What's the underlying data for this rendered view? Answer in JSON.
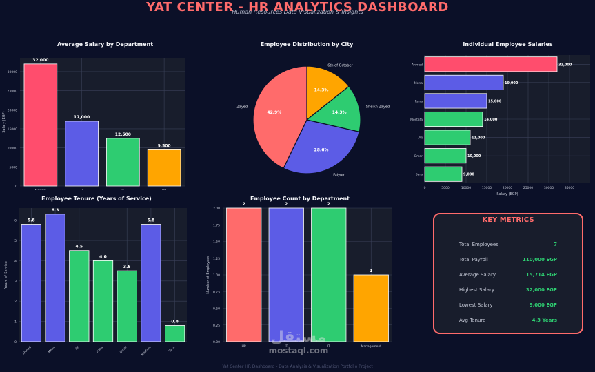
{
  "header": {
    "title": "YAT CENTER - HR ANALYTICS DASHBOARD",
    "subtitle": "Human Resources Data Visualization & Insights"
  },
  "chart_data": [
    {
      "id": "avg_salary",
      "type": "bar",
      "title": "Average Salary by Department",
      "ylabel": "Salary (EGP)",
      "categories": [
        "Manag.",
        "IT",
        "IT",
        "HR"
      ],
      "values": [
        32000,
        17000,
        12500,
        9500
      ],
      "value_labels": [
        "32,000",
        "17,000",
        "12,500",
        "9,500"
      ],
      "colors": [
        "#ff4d6d",
        "#5c5ce6",
        "#2ecc71",
        "#ffa500"
      ],
      "ylim": [
        0,
        33600
      ],
      "yticks": [
        0,
        5000,
        10000,
        15000,
        20000,
        25000,
        30000
      ],
      "grid": true
    },
    {
      "id": "city_dist",
      "type": "pie",
      "title": "Employee Distribution by City",
      "labels": [
        "6th of October",
        "Sheikh Zayed",
        "Faiyum",
        "Zayed"
      ],
      "values": [
        14.3,
        14.3,
        28.6,
        42.9
      ],
      "pct_labels": [
        "14.3%",
        "14.3%",
        "28.6%",
        "42.9%"
      ],
      "colors": [
        "#ffa500",
        "#2ecc71",
        "#5c5ce6",
        "#ff6b6b"
      ]
    },
    {
      "id": "ind_salary",
      "type": "bar",
      "orientation": "horizontal",
      "title": "Individual Employee Salaries",
      "xlabel": "Salary (EGP)",
      "categories": [
        "Ahmed",
        "Mona",
        "Rana",
        "Mostafa",
        "Ali",
        "Omar",
        "Sara"
      ],
      "values": [
        32000,
        19000,
        15000,
        14000,
        11000,
        10000,
        9000
      ],
      "value_labels": [
        "32,000",
        "19,000",
        "15,000",
        "14,000",
        "11,000",
        "10,000",
        "9,000"
      ],
      "colors": [
        "#ff4d6d",
        "#5c5ce6",
        "#5c5ce6",
        "#2ecc71",
        "#2ecc71",
        "#2ecc71",
        "#2ecc71"
      ],
      "xlim": [
        0,
        40000
      ],
      "xticks": [
        0,
        5000,
        10000,
        15000,
        20000,
        25000,
        30000,
        35000
      ],
      "grid": true
    },
    {
      "id": "tenure",
      "type": "bar",
      "title": "Employee Tenure (Years of Service)",
      "ylabel": "Years of Service",
      "categories": [
        "Ahmed",
        "Mona",
        "Ali",
        "Rana",
        "Omar",
        "Mostafa",
        "Sara"
      ],
      "values": [
        5.8,
        6.3,
        4.5,
        4.0,
        3.5,
        5.8,
        0.8
      ],
      "value_labels": [
        "5.8",
        "6.3",
        "4.5",
        "4.0",
        "3.5",
        "5.8",
        "0.8"
      ],
      "colors": [
        "#5c5ce6",
        "#5c5ce6",
        "#2ecc71",
        "#2ecc71",
        "#2ecc71",
        "#5c5ce6",
        "#2ecc71"
      ],
      "ylim": [
        0,
        6.6
      ],
      "yticks": [
        0,
        1,
        2,
        3,
        4,
        5,
        6
      ],
      "grid": true
    },
    {
      "id": "emp_count",
      "type": "bar",
      "title": "Employee Count by Department",
      "ylabel": "Number of Employees",
      "categories": [
        "HR",
        "IT",
        "IT",
        "Management"
      ],
      "values": [
        2,
        2,
        2,
        1
      ],
      "value_labels": [
        "2",
        "2",
        "2",
        "1"
      ],
      "colors": [
        "#ff6b6b",
        "#5c5ce6",
        "#2ecc71",
        "#ffa500"
      ],
      "ylim": [
        0,
        2.0
      ],
      "yticks": [
        0,
        0.25,
        0.5,
        0.75,
        1.0,
        1.25,
        1.5,
        1.75,
        2.0
      ],
      "ytick_labels": [
        "0.00",
        "0.25",
        "0.50",
        "0.75",
        "1.00",
        "1.25",
        "1.50",
        "1.75",
        "2.00"
      ],
      "grid": true
    }
  ],
  "metrics": {
    "title": "KEY METRICS",
    "rows": [
      {
        "label": "Total Employees",
        "value": "7"
      },
      {
        "label": "Total Payroll",
        "value": "110,000 EGP"
      },
      {
        "label": "Average Salary",
        "value": "15,714 EGP"
      },
      {
        "label": "Highest Salary",
        "value": "32,000 EGP"
      },
      {
        "label": "Lowest Salary",
        "value": "9,000 EGP"
      },
      {
        "label": "Avg Tenure",
        "value": "4.3 Years"
      }
    ]
  },
  "watermark": {
    "arabic": "مستقل",
    "latin": "mostaql.com"
  },
  "footer": "Yat Center HR Dashboard - Data Analysis & Visualization Portfolio Project"
}
